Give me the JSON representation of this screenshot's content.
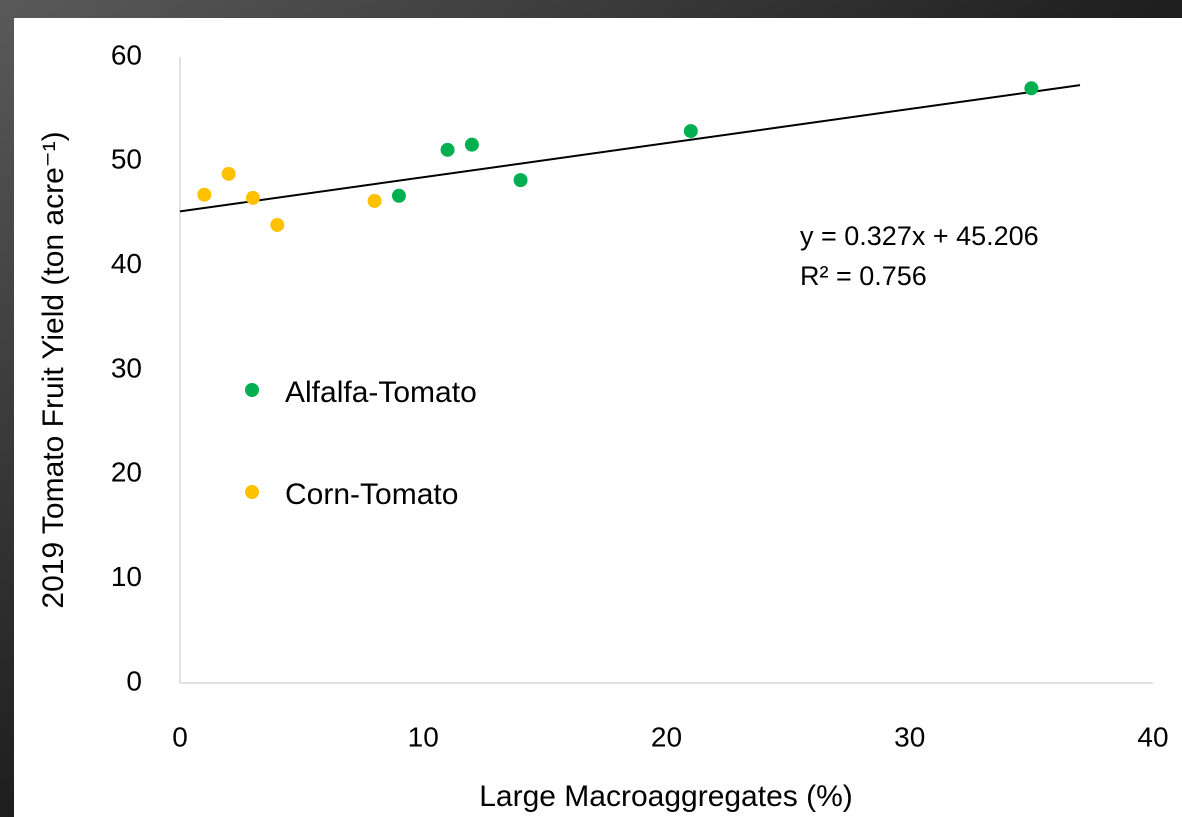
{
  "chart_data": {
    "type": "scatter",
    "x_label": "Large Macroaggregates (%)",
    "y_label": "2019 Tomato Fruit Yield (ton acre⁻¹)",
    "xlim": [
      0,
      40
    ],
    "xticks": [
      0,
      10,
      20,
      30,
      40
    ],
    "ylim": [
      0,
      60
    ],
    "yticks": [
      0,
      10,
      20,
      30,
      40,
      50,
      60
    ],
    "grid": false,
    "legend_position": "center-left",
    "series": [
      {
        "name": "Alfalfa-Tomato",
        "color": "#00b050",
        "x": [
          9,
          11,
          12,
          14,
          21,
          35
        ],
        "values": [
          46.7,
          51.1,
          51.6,
          48.2,
          52.9,
          57.0
        ]
      },
      {
        "name": "Corn-Tomato",
        "color": "#ffc000",
        "x": [
          1,
          2,
          3,
          4,
          8
        ],
        "values": [
          46.8,
          48.8,
          46.5,
          43.9,
          46.2
        ]
      }
    ],
    "trendline": {
      "slope": 0.327,
      "intercept": 45.206,
      "x_range": [
        0,
        37
      ],
      "color": "#000000"
    },
    "annotations": [
      "y = 0.327x + 45.206",
      "R² = 0.756"
    ]
  }
}
